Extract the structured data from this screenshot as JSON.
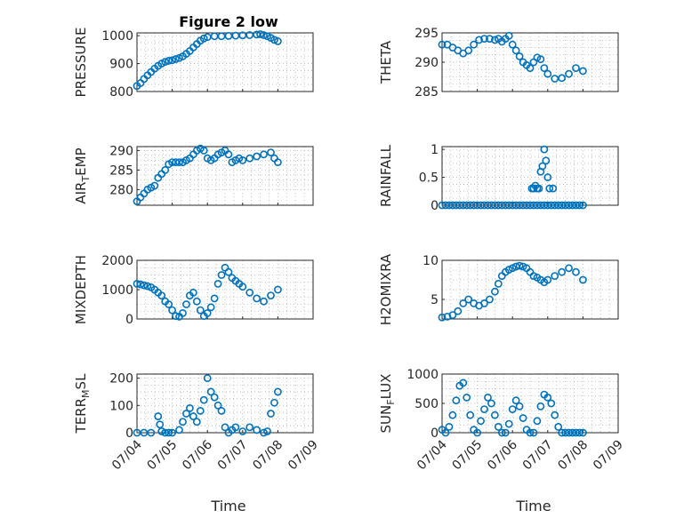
{
  "figure": {
    "title": "Figure 2 low"
  },
  "time_axis": {
    "xlabel": "Time",
    "xlim": [
      0,
      5
    ],
    "ticks": [
      0,
      1,
      2,
      3,
      4,
      5
    ],
    "tick_labels": [
      "07/04",
      "07/05",
      "07/06",
      "07/07",
      "07/08",
      "07/09"
    ]
  },
  "chart_data": [
    {
      "type": "scatter",
      "id": "pressure",
      "ylabel": "PRESSURE",
      "ylim": [
        800,
        1010
      ],
      "yticks": [
        800,
        900,
        1000
      ],
      "x": [
        0,
        0.1,
        0.2,
        0.3,
        0.4,
        0.5,
        0.6,
        0.7,
        0.8,
        0.9,
        1.0,
        1.1,
        1.2,
        1.3,
        1.4,
        1.5,
        1.6,
        1.7,
        1.8,
        1.9,
        2.0,
        2.2,
        2.4,
        2.6,
        2.8,
        3.0,
        3.2,
        3.4,
        3.5,
        3.6,
        3.7,
        3.8,
        3.9,
        4.0
      ],
      "y": [
        820,
        830,
        845,
        858,
        870,
        882,
        892,
        900,
        906,
        910,
        912,
        916,
        920,
        926,
        935,
        945,
        958,
        970,
        982,
        990,
        995,
        998,
        998,
        999,
        1000,
        1001,
        1002,
        1004,
        1005,
        1002,
        998,
        992,
        985,
        980
      ]
    },
    {
      "type": "scatter",
      "id": "theta",
      "ylabel": "THETA",
      "ylim": [
        285,
        295
      ],
      "yticks": [
        285,
        290,
        295
      ],
      "x": [
        0,
        0.15,
        0.3,
        0.45,
        0.6,
        0.75,
        0.9,
        1.05,
        1.2,
        1.35,
        1.5,
        1.6,
        1.7,
        1.8,
        1.9,
        2.0,
        2.1,
        2.2,
        2.3,
        2.4,
        2.5,
        2.6,
        2.7,
        2.8,
        2.9,
        3.0,
        3.2,
        3.4,
        3.6,
        3.8,
        4.0
      ],
      "y": [
        293,
        293,
        292.5,
        292,
        291.5,
        292,
        293,
        293.8,
        294,
        294,
        293.8,
        294,
        293.5,
        294,
        294.5,
        293,
        292,
        291,
        290,
        289.5,
        289,
        290,
        290.8,
        290.5,
        289,
        288,
        287.2,
        287.3,
        288,
        289,
        288.5
      ]
    },
    {
      "type": "scatter",
      "id": "air_temp",
      "ylabel_main": "AIR",
      "ylabel_sub": "T",
      "ylabel_tail": "EMP",
      "ylim": [
        276,
        291
      ],
      "yticks": [
        280,
        285,
        290
      ],
      "x": [
        0,
        0.1,
        0.2,
        0.3,
        0.4,
        0.5,
        0.6,
        0.7,
        0.8,
        0.9,
        1.0,
        1.1,
        1.2,
        1.3,
        1.4,
        1.5,
        1.6,
        1.7,
        1.8,
        1.9,
        2.0,
        2.1,
        2.2,
        2.3,
        2.4,
        2.5,
        2.6,
        2.7,
        2.8,
        2.9,
        3.0,
        3.2,
        3.4,
        3.6,
        3.8,
        3.9,
        4.0
      ],
      "y": [
        277,
        278,
        279,
        280,
        280.5,
        281,
        283,
        284,
        285,
        286.5,
        287,
        287,
        287,
        287,
        287.5,
        288,
        289,
        290,
        290.5,
        290,
        288,
        287.5,
        288,
        289,
        289.5,
        290,
        289,
        287,
        287.5,
        288,
        287.5,
        288,
        288.5,
        289,
        289.5,
        288,
        287
      ]
    },
    {
      "type": "scatter",
      "id": "rainfall",
      "ylabel": "RAINFALL",
      "ylim": [
        0,
        1.05
      ],
      "yticks": [
        0,
        0.5,
        1
      ],
      "x": [
        0,
        0.1,
        0.2,
        0.3,
        0.4,
        0.5,
        0.6,
        0.7,
        0.8,
        0.9,
        1.0,
        1.1,
        1.2,
        1.3,
        1.4,
        1.5,
        1.6,
        1.7,
        1.8,
        1.9,
        2.0,
        2.1,
        2.2,
        2.3,
        2.4,
        2.5,
        2.6,
        2.7,
        2.8,
        2.9,
        3.0,
        3.1,
        3.2,
        3.3,
        3.4,
        3.5,
        3.6,
        3.7,
        3.8,
        3.9,
        4.0,
        2.55,
        2.6,
        2.65,
        2.7,
        2.75,
        2.8,
        2.85,
        2.9,
        2.95,
        3.0,
        3.05,
        3.15
      ],
      "y": [
        0,
        0,
        0,
        0,
        0,
        0,
        0,
        0,
        0,
        0,
        0,
        0,
        0,
        0,
        0,
        0,
        0,
        0,
        0,
        0,
        0,
        0,
        0,
        0,
        0,
        0,
        0,
        0,
        0,
        0,
        0,
        0,
        0,
        0,
        0,
        0,
        0,
        0,
        0,
        0,
        0,
        0.3,
        0.3,
        0.35,
        0.3,
        0.3,
        0.6,
        0.7,
        1.0,
        0.8,
        0.5,
        0.3,
        0.3
      ]
    },
    {
      "type": "scatter",
      "id": "mixdepth",
      "ylabel": "MIXDEPTH",
      "ylim": [
        0,
        2000
      ],
      "yticks": [
        0,
        1000,
        2000
      ],
      "x": [
        0,
        0.1,
        0.2,
        0.3,
        0.4,
        0.5,
        0.6,
        0.7,
        0.8,
        0.9,
        1.0,
        1.1,
        1.2,
        1.3,
        1.4,
        1.5,
        1.6,
        1.7,
        1.8,
        1.9,
        2.0,
        2.1,
        2.2,
        2.3,
        2.4,
        2.5,
        2.6,
        2.7,
        2.8,
        2.9,
        3.0,
        3.2,
        3.4,
        3.6,
        3.8,
        4.0
      ],
      "y": [
        1200,
        1180,
        1150,
        1120,
        1080,
        1000,
        900,
        800,
        600,
        500,
        300,
        100,
        80,
        200,
        500,
        800,
        900,
        600,
        300,
        100,
        200,
        400,
        700,
        1200,
        1500,
        1750,
        1600,
        1400,
        1300,
        1200,
        1100,
        900,
        700,
        600,
        800,
        1000
      ]
    },
    {
      "type": "scatter",
      "id": "h2omixra",
      "ylabel": "H2OMIXRA",
      "ylim": [
        2.5,
        10
      ],
      "yticks": [
        5,
        10
      ],
      "x": [
        0,
        0.15,
        0.3,
        0.45,
        0.6,
        0.75,
        0.9,
        1.05,
        1.2,
        1.35,
        1.5,
        1.6,
        1.7,
        1.8,
        1.9,
        2.0,
        2.1,
        2.2,
        2.3,
        2.4,
        2.5,
        2.6,
        2.7,
        2.8,
        2.9,
        3.0,
        3.2,
        3.4,
        3.6,
        3.8,
        4.0
      ],
      "y": [
        2.7,
        2.8,
        3,
        3.5,
        4.5,
        5,
        4.5,
        4.2,
        4.5,
        5,
        6,
        7,
        8,
        8.5,
        8.8,
        9,
        9.2,
        9.3,
        9.2,
        9,
        8.5,
        8,
        7.8,
        7.5,
        7.2,
        7.5,
        8,
        8.5,
        9,
        8.5,
        7.5
      ]
    },
    {
      "type": "scatter",
      "id": "terr_msl",
      "ylabel_main": "TERR",
      "ylabel_sub": "M",
      "ylabel_tail": "SL",
      "ylim": [
        0,
        215
      ],
      "yticks": [
        0,
        100,
        200
      ],
      "x": [
        0,
        0.2,
        0.4,
        0.6,
        0.65,
        0.7,
        0.8,
        0.9,
        1.0,
        1.2,
        1.3,
        1.4,
        1.5,
        1.6,
        1.7,
        1.8,
        1.9,
        2.0,
        2.1,
        2.2,
        2.3,
        2.4,
        2.5,
        2.6,
        2.7,
        2.8,
        3.0,
        3.2,
        3.4,
        3.6,
        3.7,
        3.8,
        3.9,
        4.0
      ],
      "y": [
        0,
        0,
        0,
        60,
        30,
        5,
        0,
        0,
        0,
        10,
        40,
        70,
        90,
        60,
        40,
        80,
        120,
        200,
        150,
        130,
        100,
        80,
        20,
        0,
        10,
        20,
        5,
        20,
        10,
        0,
        5,
        70,
        110,
        150
      ]
    },
    {
      "type": "scatter",
      "id": "sun_flux",
      "ylabel_main": "SUN",
      "ylabel_sub": "F",
      "ylabel_tail": "LUX",
      "ylim": [
        0,
        1000
      ],
      "yticks": [
        0,
        500,
        1000
      ],
      "x": [
        0,
        0.1,
        0.2,
        0.3,
        0.4,
        0.5,
        0.6,
        0.7,
        0.8,
        0.9,
        1.0,
        1.1,
        1.2,
        1.3,
        1.4,
        1.5,
        1.6,
        1.7,
        1.8,
        1.9,
        2.0,
        2.1,
        2.2,
        2.3,
        2.4,
        2.5,
        2.6,
        2.7,
        2.8,
        2.9,
        3.0,
        3.1,
        3.2,
        3.3,
        3.4,
        3.5,
        3.6,
        3.7,
        3.8,
        3.9,
        4.0
      ],
      "y": [
        50,
        0,
        100,
        300,
        550,
        800,
        850,
        600,
        300,
        50,
        0,
        200,
        400,
        600,
        500,
        300,
        100,
        0,
        0,
        150,
        400,
        550,
        450,
        250,
        50,
        0,
        0,
        200,
        450,
        650,
        600,
        500,
        300,
        100,
        0,
        0,
        0,
        0,
        0,
        0,
        0
      ]
    }
  ],
  "colors": {
    "marker": "#0072bd",
    "axis": "#262626",
    "grid": "#b0b0b0"
  }
}
